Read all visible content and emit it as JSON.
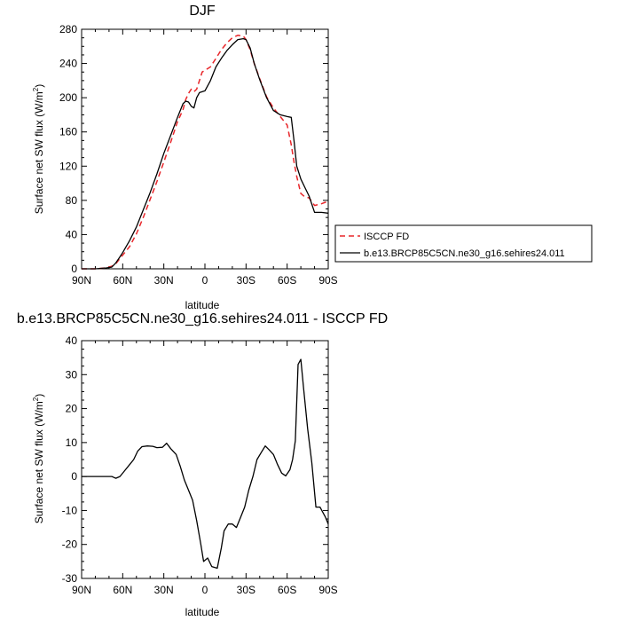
{
  "chart_data": [
    {
      "type": "line",
      "title": "DJF",
      "xlabel": "latitude",
      "ylabel_main": "Surface net SW flux (W/m",
      "ylabel_sup": "2",
      "ylabel_close": ")",
      "xlim": [
        90,
        -90
      ],
      "ylim": [
        0,
        280
      ],
      "x_ticks": [
        90,
        60,
        30,
        0,
        -30,
        -60,
        -90
      ],
      "x_tick_labels": [
        "90N",
        "60N",
        "30N",
        "0",
        "30S",
        "60S",
        "90S"
      ],
      "y_ticks": [
        0,
        40,
        80,
        120,
        160,
        200,
        240,
        280
      ],
      "y_tick_labels": [
        "0",
        "40",
        "80",
        "120",
        "160",
        "200",
        "240",
        "280"
      ],
      "grid": false,
      "legend_position": "right",
      "series": [
        {
          "name": "ISCCP FD",
          "color": "#e8262a",
          "dash": "dashed",
          "x": [
            90,
            80,
            72,
            68,
            65,
            62,
            60,
            55,
            50,
            45,
            40,
            35,
            30,
            25,
            20,
            16,
            14,
            12,
            10,
            8,
            6,
            4,
            2,
            0,
            -4,
            -8,
            -12,
            -16,
            -20,
            -24,
            -28,
            -30,
            -33,
            -36,
            -40,
            -45,
            -50,
            -55,
            -60,
            -63,
            -65,
            -67,
            -70,
            -73,
            -76,
            -80,
            -85,
            -90
          ],
          "y": [
            0,
            0,
            1,
            3,
            6,
            12,
            16,
            26,
            41,
            60,
            81,
            102,
            125,
            148,
            172,
            186,
            198,
            205,
            210,
            207,
            210,
            220,
            230,
            232,
            236,
            246,
            256,
            264,
            270,
            273,
            272,
            268,
            256,
            240,
            222,
            201,
            188,
            178,
            168,
            145,
            125,
            108,
            88,
            84,
            83,
            74,
            76,
            79
          ]
        },
        {
          "name": "b.e13.BRCP85C5CN.ne30_g16.sehires24.011",
          "color": "#000000",
          "dash": "solid",
          "x": [
            90,
            80,
            72,
            68,
            65,
            62,
            60,
            55,
            50,
            45,
            40,
            35,
            30,
            25,
            20,
            16,
            14,
            12,
            10,
            8,
            6,
            4,
            2,
            0,
            -4,
            -8,
            -12,
            -16,
            -20,
            -24,
            -28,
            -30,
            -33,
            -36,
            -40,
            -45,
            -50,
            -55,
            -60,
            -63,
            -65,
            -67,
            -70,
            -73,
            -76,
            -80,
            -85,
            -90
          ],
          "y": [
            0,
            0,
            1,
            2,
            7,
            14,
            19,
            33,
            49,
            69,
            89,
            111,
            135,
            156,
            177,
            193,
            196,
            195,
            190,
            188,
            200,
            206,
            207,
            208,
            220,
            236,
            246,
            255,
            262,
            268,
            269,
            268,
            258,
            240,
            221,
            200,
            185,
            180,
            178,
            177,
            150,
            120,
            105,
            95,
            85,
            66,
            66,
            65
          ]
        }
      ]
    },
    {
      "type": "line",
      "title": "b.e13.BRCP85C5CN.ne30_g16.sehires24.011 - ISCCP FD",
      "xlabel": "latitude",
      "ylabel_main": "Surface net SW flux (W/m",
      "ylabel_sup": "2",
      "ylabel_close": ")",
      "xlim": [
        90,
        -90
      ],
      "ylim": [
        -30,
        40
      ],
      "x_ticks": [
        90,
        60,
        30,
        0,
        -30,
        -60,
        -90
      ],
      "x_tick_labels": [
        "90N",
        "60N",
        "30N",
        "0",
        "30S",
        "60S",
        "90S"
      ],
      "y_ticks": [
        -30,
        -20,
        -10,
        0,
        10,
        20,
        30,
        40
      ],
      "y_tick_labels": [
        "-30",
        "-20",
        "-10",
        "0",
        "10",
        "20",
        "30",
        "40"
      ],
      "grid": false,
      "series": [
        {
          "color": "#000000",
          "dash": "solid",
          "x": [
            90,
            80,
            72,
            68,
            65,
            62,
            58,
            55,
            52,
            49,
            46,
            42,
            38,
            35,
            31,
            28,
            25,
            21,
            18,
            15,
            12,
            9,
            6,
            3,
            1,
            -2,
            -5,
            -9,
            -12,
            -14,
            -17,
            -20,
            -23,
            -26,
            -29,
            -32,
            -35,
            -38,
            -41,
            -44,
            -47,
            -50,
            -53,
            -56,
            -59,
            -62,
            -64,
            -66,
            -68,
            -70,
            -72,
            -75,
            -78,
            -81,
            -84,
            -88,
            -90
          ],
          "y": [
            0,
            0,
            0,
            0,
            -0.5,
            0,
            2,
            3.5,
            5,
            7.5,
            8.8,
            9.0,
            8.9,
            8.5,
            8.6,
            9.8,
            8.2,
            6.5,
            3,
            -1,
            -4,
            -7,
            -13,
            -20,
            -25,
            -24,
            -26.5,
            -27,
            -21,
            -16,
            -14,
            -14,
            -15,
            -12,
            -9,
            -4,
            0,
            5,
            7,
            9,
            7.8,
            6.5,
            3.5,
            1,
            0.2,
            2,
            5,
            10.5,
            33,
            34.5,
            26,
            14,
            4,
            -9,
            -9,
            -12,
            -14
          ]
        }
      ]
    }
  ]
}
